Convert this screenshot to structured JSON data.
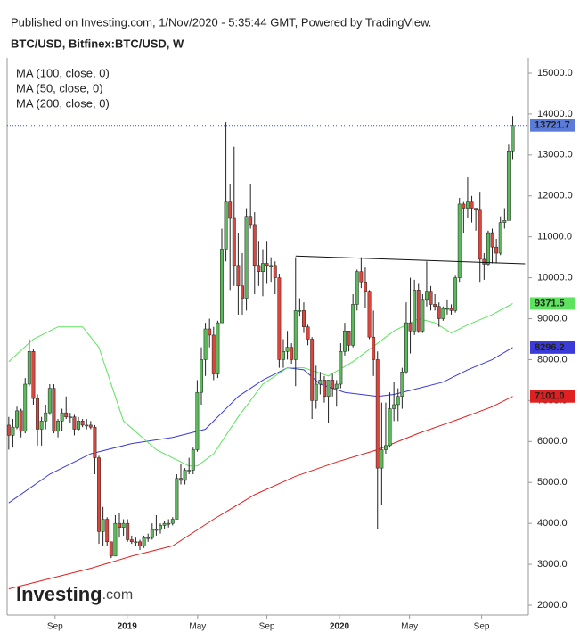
{
  "chart_data": {
    "type": "candlestick",
    "publisher": "Published on Investing.com, 1/Nov/2020 - 5:35:44 GMT, Powered by TradingView.",
    "title": "BTC/USD, Bitfinex:BTC/USD, W",
    "categories": [
      null,
      null,
      null,
      null,
      null,
      null,
      null,
      null,
      null,
      null,
      null,
      null,
      null,
      null,
      null,
      null,
      null,
      null,
      null,
      null,
      null,
      null,
      null,
      null,
      null,
      null,
      null,
      null,
      null,
      null,
      null,
      null,
      null,
      null,
      null,
      null,
      null,
      null,
      null,
      null,
      null,
      null,
      null,
      null,
      null,
      null,
      null,
      null,
      null,
      null,
      null,
      null,
      null,
      null,
      null,
      null,
      null,
      null,
      null,
      null,
      null,
      null,
      null,
      null,
      null,
      null,
      null,
      null,
      null,
      null,
      null,
      null,
      null,
      null,
      null,
      null,
      null,
      null,
      null,
      null,
      null,
      null,
      null,
      null,
      null,
      null,
      null,
      null,
      null,
      null,
      null,
      null,
      null,
      null,
      null,
      null,
      null,
      null,
      null,
      null,
      null,
      null,
      null,
      null,
      null,
      null,
      null,
      null,
      null,
      null,
      null,
      null,
      null,
      null,
      null,
      null,
      null,
      null,
      null,
      null,
      null,
      null,
      null,
      null
    ],
    "open": [
      6400,
      6150,
      6350,
      6750,
      6250,
      7400,
      8200,
      7050,
      6300,
      6500,
      6700,
      7300,
      6250,
      6500,
      6700,
      6600,
      6600,
      6300,
      6500,
      6400,
      6400,
      6350,
      5600,
      3800,
      4100,
      3550,
      3200,
      4000,
      3900,
      4000,
      3600,
      3550,
      3550,
      3450,
      3650,
      3650,
      3850,
      3850,
      3950,
      4000,
      4000,
      4100,
      5100,
      5050,
      5300,
      5300,
      5800,
      7200,
      8000,
      8750,
      8600,
      7650,
      8900,
      10700,
      11850,
      11450,
      10300,
      9800,
      9500,
      11500,
      11300,
      10300,
      10150,
      10350,
      10300,
      10300,
      10000,
      8000,
      8200,
      8300,
      8000,
      9200,
      9200,
      8800,
      8500,
      7000,
      7400,
      7500,
      7100,
      7500,
      7300,
      7400,
      8200,
      8700,
      8350,
      9350,
      10150,
      9900,
      9650,
      8550,
      8000,
      5350,
      5800,
      5900,
      6800,
      6900,
      7100,
      7700,
      8900,
      8700,
      9700,
      8700,
      9450,
      9650,
      9350,
      9300,
      9000,
      9250,
      9250,
      9200,
      10000,
      11800,
      11700,
      11850,
      11700,
      11650,
      10450,
      10330,
      11100,
      10750,
      10600,
      11350,
      11400,
      13100
    ],
    "high": [
      6600,
      6550,
      6850,
      6800,
      7550,
      8500,
      8250,
      7150,
      6600,
      6900,
      7400,
      7400,
      6550,
      6800,
      7100,
      6700,
      6650,
      6600,
      6550,
      6550,
      6500,
      6400,
      5650,
      4400,
      4150,
      3550,
      4200,
      4250,
      4100,
      4100,
      3700,
      3650,
      3600,
      3700,
      3750,
      4000,
      4200,
      4000,
      4050,
      4100,
      4150,
      5200,
      5450,
      5350,
      5600,
      5850,
      7500,
      8300,
      8900,
      9000,
      8800,
      8950,
      11200,
      13800,
      12300,
      13200,
      11100,
      10600,
      11700,
      12300,
      11600,
      10900,
      10700,
      10900,
      10500,
      10400,
      10100,
      8500,
      8700,
      8400,
      10500,
      9500,
      9400,
      8850,
      8550,
      7850,
      7700,
      7600,
      7500,
      7650,
      7500,
      8400,
      8900,
      8700,
      9600,
      10200,
      10500,
      10250,
      9700,
      9200,
      8200,
      6950,
      6950,
      7200,
      7450,
      7300,
      7800,
      9400,
      10000,
      9950,
      9850,
      9600,
      10400,
      9800,
      9600,
      9400,
      9300,
      9450,
      9350,
      10050,
      11950,
      11850,
      12450,
      12000,
      11700,
      12100,
      10600,
      11150,
      11200,
      10950,
      11500,
      11700,
      13250,
      13950
    ],
    "low": [
      5800,
      5850,
      6300,
      6100,
      6200,
      7350,
      6900,
      5900,
      5900,
      6300,
      6650,
      6200,
      6100,
      6250,
      6550,
      6450,
      6150,
      6250,
      6350,
      6300,
      6300,
      5200,
      3500,
      3450,
      3450,
      3150,
      3200,
      3650,
      3700,
      3550,
      3500,
      3450,
      3350,
      3400,
      3550,
      3600,
      3700,
      3750,
      3850,
      3900,
      3950,
      4100,
      4950,
      4950,
      5200,
      5200,
      5750,
      6900,
      7600,
      8300,
      7500,
      7550,
      8900,
      10400,
      9700,
      9800,
      9100,
      9100,
      9200,
      11200,
      9600,
      9800,
      9550,
      9850,
      9900,
      9600,
      7800,
      7800,
      8000,
      7900,
      7350,
      9050,
      8650,
      8350,
      6550,
      6800,
      7150,
      6950,
      6450,
      7100,
      6850,
      7300,
      8100,
      8200,
      8300,
      9200,
      9750,
      9250,
      8500,
      7600,
      3850,
      4450,
      5700,
      5850,
      6500,
      6500,
      6800,
      7650,
      8150,
      8600,
      8650,
      8650,
      9300,
      9200,
      9200,
      8800,
      8950,
      9100,
      9100,
      9150,
      9900,
      11100,
      11450,
      11350,
      11150,
      9900,
      9950,
      10300,
      10350,
      10350,
      10550,
      11200,
      11400,
      12900
    ],
    "close": [
      6150,
      6350,
      6750,
      6250,
      7400,
      8200,
      7050,
      6300,
      6500,
      6700,
      7300,
      6250,
      6500,
      6700,
      6600,
      6600,
      6300,
      6500,
      6400,
      6400,
      6350,
      5600,
      3800,
      4100,
      3550,
      3200,
      4000,
      3900,
      4000,
      3600,
      3550,
      3550,
      3450,
      3650,
      3650,
      3850,
      3850,
      3950,
      4000,
      4000,
      4100,
      5100,
      5050,
      5300,
      5300,
      5800,
      7200,
      8000,
      8750,
      8600,
      7650,
      8900,
      10700,
      11850,
      11450,
      10300,
      9800,
      9500,
      11500,
      11300,
      10300,
      10150,
      10350,
      10300,
      10300,
      10000,
      8000,
      8200,
      8300,
      8000,
      9200,
      9200,
      8800,
      8500,
      7000,
      7400,
      7500,
      7100,
      7500,
      7300,
      7400,
      8200,
      8700,
      8350,
      9350,
      10150,
      9900,
      9650,
      8550,
      8000,
      5350,
      5800,
      5900,
      6800,
      6900,
      7100,
      7700,
      8900,
      8700,
      9700,
      8700,
      9450,
      9650,
      9350,
      9300,
      9000,
      9250,
      9250,
      9200,
      10000,
      11800,
      11700,
      11850,
      11700,
      11650,
      10450,
      10330,
      11100,
      10750,
      10600,
      11350,
      11400,
      13100,
      13721.7
    ],
    "up_color": "#5cb85c",
    "down_color": "#d9463e",
    "end_label": "13721.7",
    "end_label_color": "#5b7bd8",
    "lines": [
      {
        "name": "MA (100, close, 0)",
        "color": "#3b3bd9",
        "end_label": "8296.2",
        "x": [
          0,
          10,
          20,
          30,
          40,
          48,
          56,
          62,
          68,
          72,
          76,
          82,
          86,
          90,
          94,
          100,
          106,
          112,
          118,
          123
        ],
        "values": [
          4500,
          5200,
          5700,
          5950,
          6100,
          6300,
          7100,
          7500,
          7800,
          7750,
          7400,
          7200,
          7150,
          7100,
          7150,
          7300,
          7450,
          7750,
          8000,
          8296.2
        ]
      },
      {
        "name": "MA (50, close, 0)",
        "color": "#5de35d",
        "end_label": "9371.5",
        "x": [
          0,
          6,
          12,
          18,
          22,
          28,
          36,
          44,
          46,
          50,
          56,
          62,
          68,
          72,
          78,
          84,
          88,
          94,
          100,
          104,
          108,
          112,
          118,
          123
        ],
        "values": [
          7950,
          8500,
          8800,
          8800,
          8300,
          6500,
          5800,
          5400,
          5400,
          5700,
          6600,
          7400,
          7800,
          7800,
          7600,
          7950,
          8250,
          8700,
          9000,
          8900,
          8650,
          8850,
          9100,
          9371.5
        ]
      },
      {
        "name": "MA (200, close, 0)",
        "color": "#e02020",
        "end_label": "7101.0",
        "x": [
          0,
          20,
          30,
          40,
          50,
          60,
          70,
          80,
          90,
          100,
          110,
          118,
          123
        ],
        "values": [
          2400,
          2900,
          3200,
          3450,
          4100,
          4700,
          5150,
          5500,
          5800,
          6200,
          6550,
          6850,
          7101
        ]
      }
    ],
    "trendline": {
      "x": [
        70,
        126
      ],
      "values": [
        10530,
        10340
      ]
    },
    "xlim": [
      -0.4,
      126.8
    ],
    "ylim": [
      1760,
      15370
    ],
    "xticks": [
      {
        "value": 11.3,
        "label": "Sep"
      },
      {
        "value": 28.9,
        "label": "2019",
        "major": true
      },
      {
        "value": 46.1,
        "label": "May"
      },
      {
        "value": 63,
        "label": "Sep"
      },
      {
        "value": 80.7,
        "label": "2020",
        "major": true
      },
      {
        "value": 97.8,
        "label": "May"
      },
      {
        "value": 115.4,
        "label": "Sep"
      }
    ],
    "yticks": [
      {
        "value": 2000,
        "label": "2000.0"
      },
      {
        "value": 3000,
        "label": "3000.0"
      },
      {
        "value": 4000,
        "label": "4000.0"
      },
      {
        "value": 5000,
        "label": "5000.0"
      },
      {
        "value": 6000,
        "label": "6000.0"
      },
      {
        "value": 7000,
        "label": "7000.0"
      },
      {
        "value": 8000,
        "label": "8000.0"
      },
      {
        "value": 9000,
        "label": "9000.0"
      },
      {
        "value": 10000,
        "label": "10000.0"
      },
      {
        "value": 11000,
        "label": "11000.0"
      },
      {
        "value": 12000,
        "label": "12000.0"
      },
      {
        "value": 13000,
        "label": "13000.0"
      },
      {
        "value": 14000,
        "label": "14000.0"
      },
      {
        "value": 15000,
        "label": "15000.0"
      }
    ],
    "logo": {
      "name": "Investing",
      "suffix": ".com"
    }
  }
}
